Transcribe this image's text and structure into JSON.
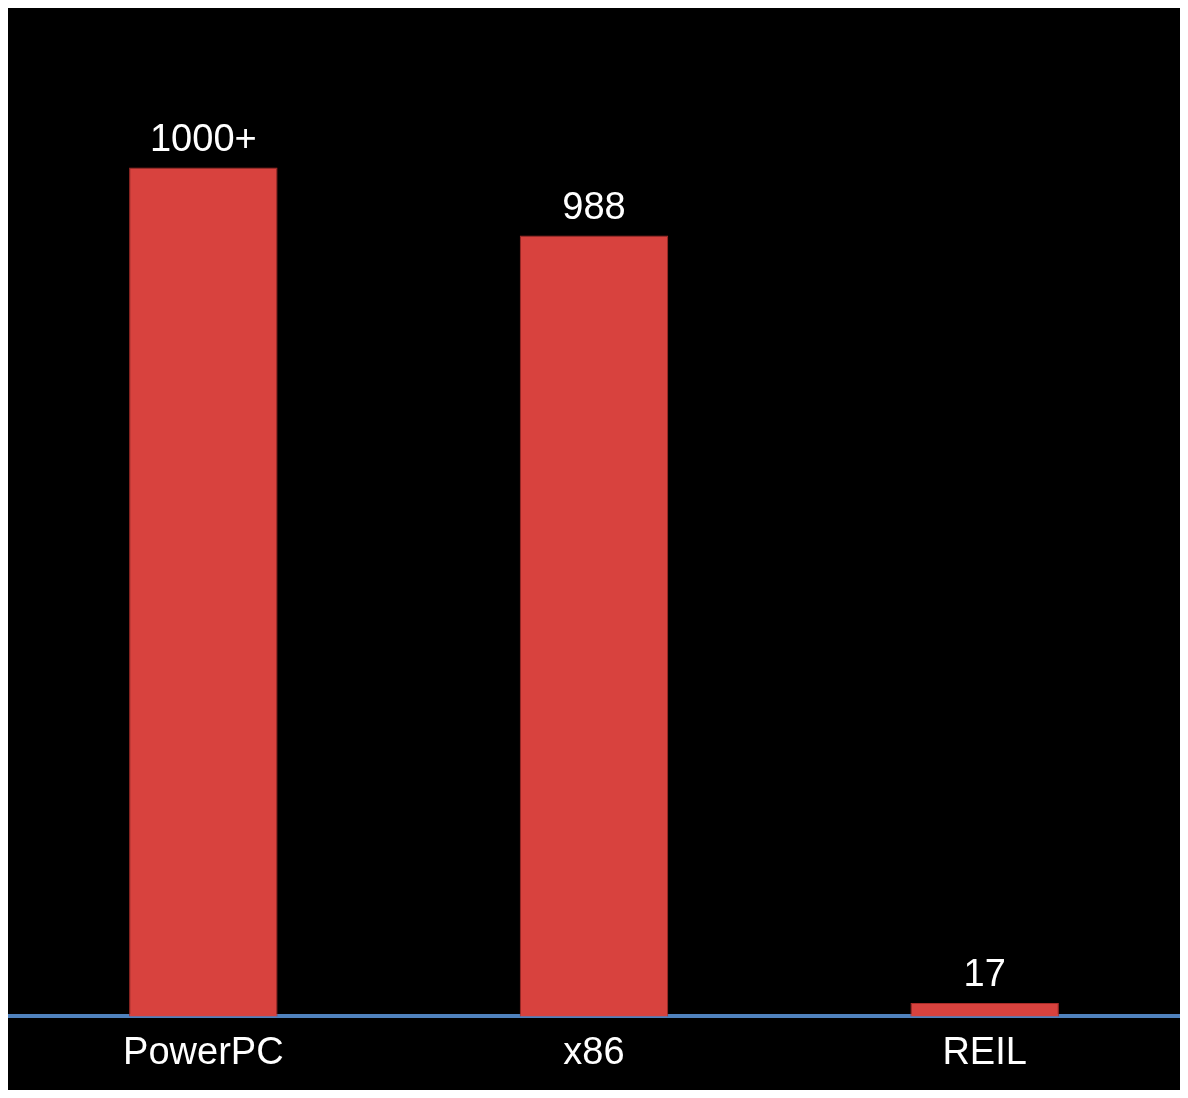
{
  "chart_data": {
    "type": "bar",
    "categories": [
      "PowerPC",
      "x86",
      "REIL"
    ],
    "values": [
      1074,
      988,
      17
    ],
    "value_labels": [
      "1000+",
      "988",
      "17"
    ],
    "color": "#d8423e"
  }
}
